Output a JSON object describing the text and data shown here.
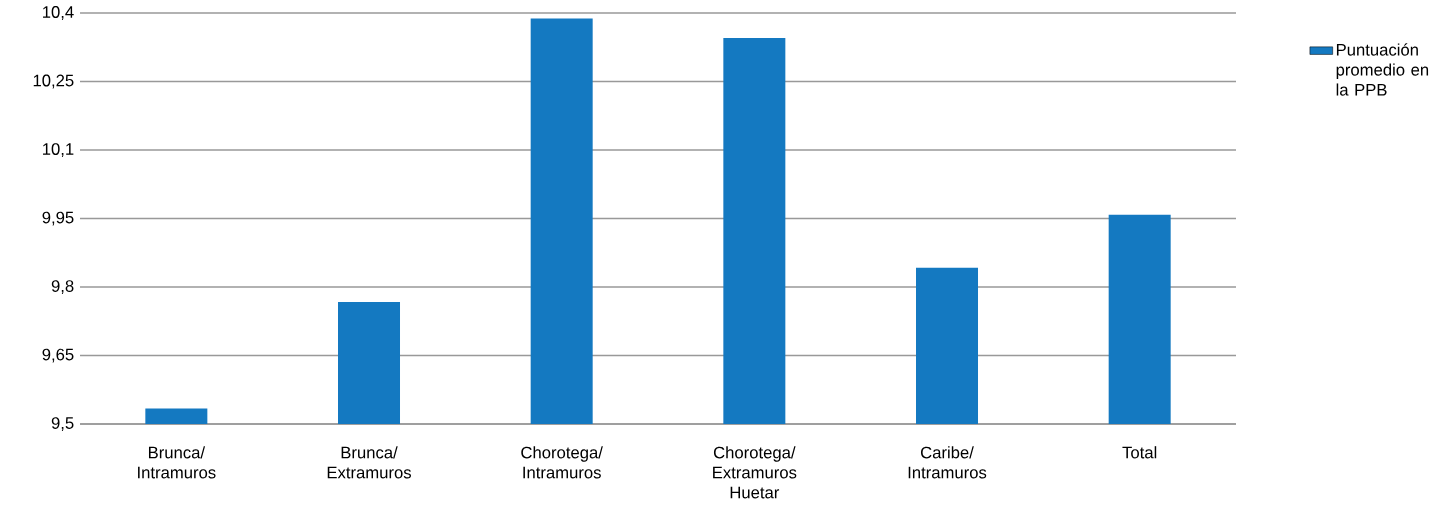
{
  "chart_data": {
    "type": "bar",
    "categories": [
      "Brunca/ Intramuros",
      "Brunca/ Extramuros",
      "Chorotega/ Intramuros",
      "Chorotega/ Extramuros Huetar",
      "Caribe/ Intramuros",
      "Total"
    ],
    "series": [
      {
        "name": "Puntuación promedio en la PPB",
        "color": "#1479c1",
        "values": [
          9.534,
          9.767,
          10.388,
          10.345,
          9.842,
          9.958
        ]
      }
    ],
    "ylim": [
      9.5,
      10.4
    ],
    "yticks": [
      {
        "value": 9.5,
        "label": "9,5"
      },
      {
        "value": 9.65,
        "label": "9,65"
      },
      {
        "value": 9.8,
        "label": "9,8"
      },
      {
        "value": 9.95,
        "label": "9,95"
      },
      {
        "value": 10.1,
        "label": "10,1"
      },
      {
        "value": 10.25,
        "label": "10,25"
      },
      {
        "value": 10.4,
        "label": "10,4"
      }
    ],
    "grid": "y",
    "legend": "top right"
  }
}
